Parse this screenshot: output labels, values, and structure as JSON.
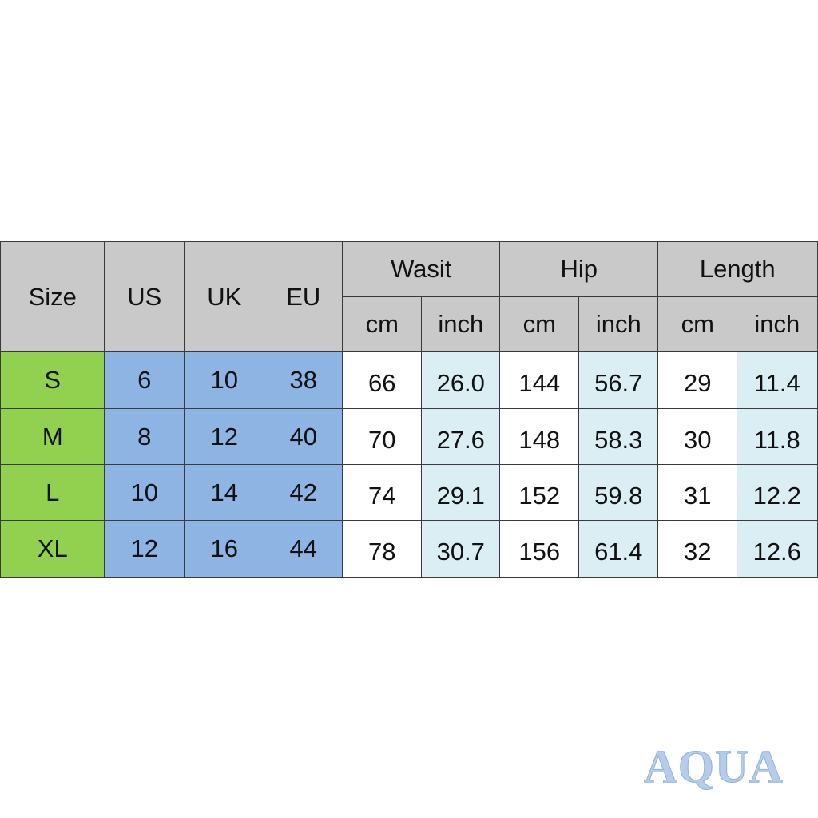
{
  "table": {
    "header": {
      "size": "Size",
      "us": "US",
      "uk": "UK",
      "eu": "EU",
      "groups": [
        {
          "title": "Wasit",
          "units": [
            "cm",
            "inch"
          ]
        },
        {
          "title": "Hip",
          "units": [
            "cm",
            "inch"
          ]
        },
        {
          "title": "Length",
          "units": [
            "cm",
            "inch"
          ]
        }
      ]
    },
    "rows": [
      [
        "S",
        "6",
        "10",
        "38",
        "66",
        "26.0",
        "144",
        "56.7",
        "29",
        "11.4"
      ],
      [
        "M",
        "8",
        "12",
        "40",
        "70",
        "27.6",
        "148",
        "58.3",
        "30",
        "11.8"
      ],
      [
        "L",
        "10",
        "14",
        "42",
        "74",
        "29.1",
        "152",
        "59.8",
        "31",
        "12.2"
      ],
      [
        "XL",
        "12",
        "16",
        "44",
        "78",
        "30.7",
        "156",
        "61.4",
        "32",
        "12.6"
      ]
    ]
  },
  "watermark": "AQUA"
}
